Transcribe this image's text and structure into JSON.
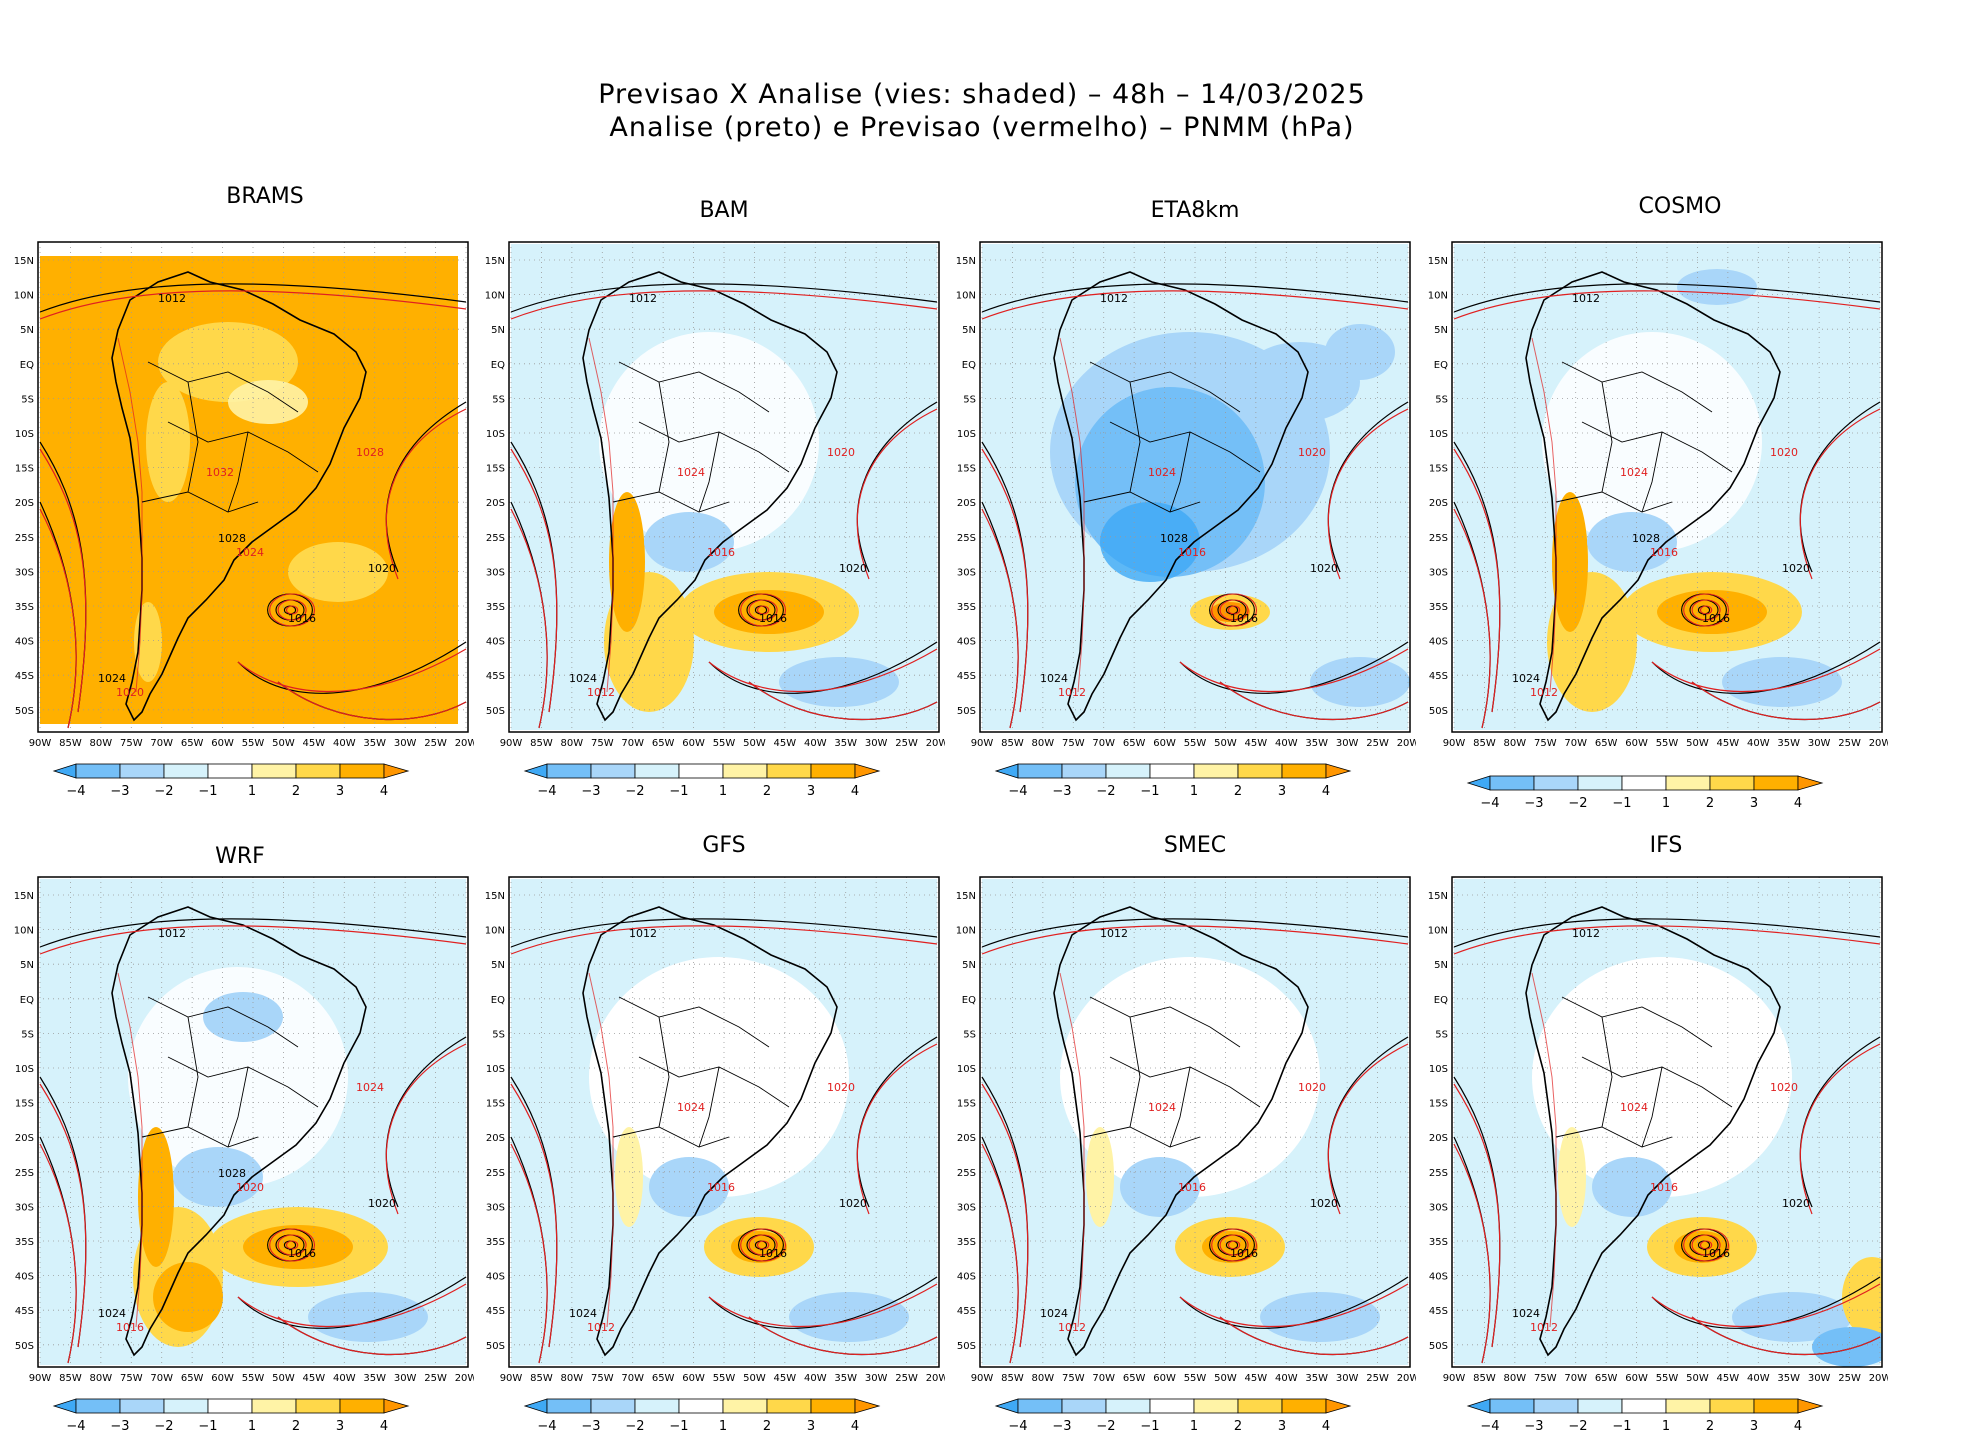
{
  "title": {
    "line1": "Previsao X Analise (vies: shaded) – 48h – 14/03/2025",
    "line2": "Analise (preto) e Previsao (vermelho) – PNMM (hPa)"
  },
  "axes": {
    "lon_labels": [
      "90W",
      "85W",
      "80W",
      "75W",
      "70W",
      "65W",
      "60W",
      "55W",
      "50W",
      "45W",
      "40W",
      "35W",
      "30W",
      "25W",
      "20W"
    ],
    "lat_labels": [
      "15N",
      "10N",
      "5N",
      "EQ",
      "5S",
      "10S",
      "15S",
      "20S",
      "25S",
      "30S",
      "35S",
      "40S",
      "45S",
      "50S"
    ]
  },
  "colorbar": {
    "labels": [
      "-4",
      "-3",
      "-2",
      "-1",
      "1",
      "2",
      "3",
      "4"
    ],
    "colors": [
      "#3fa9f5",
      "#74bff7",
      "#a9d6f9",
      "#d6f2fb",
      "#ffffff",
      "#fff3a6",
      "#ffd84a",
      "#ffb000",
      "#ff9600"
    ]
  },
  "colors": {
    "analysis": "#000000",
    "forecast": "#e02020",
    "grid": "#9a9a9a"
  },
  "panels": [
    {
      "name": "BRAMS",
      "bias": "warm-full",
      "labels_black": [
        "1012",
        "1016",
        "1020",
        "1024",
        "1028"
      ],
      "labels_red": [
        "1020",
        "1024",
        "1028",
        "1032"
      ]
    },
    {
      "name": "BAM",
      "bias": "mixed",
      "labels_black": [
        "1012",
        "1016",
        "1020",
        "1024"
      ],
      "labels_red": [
        "1012",
        "1016",
        "1020",
        "1024"
      ]
    },
    {
      "name": "ETA8km",
      "bias": "cold",
      "labels_black": [
        "1012",
        "1016",
        "1020",
        "1024",
        "1028"
      ],
      "labels_red": [
        "1012",
        "1016",
        "1020",
        "1024"
      ]
    },
    {
      "name": "COSMO",
      "bias": "mixed",
      "labels_black": [
        "1012",
        "1016",
        "1020",
        "1024",
        "1028"
      ],
      "labels_red": [
        "1012",
        "1016",
        "1020",
        "1024"
      ]
    },
    {
      "name": "WRF",
      "bias": "mixed",
      "labels_black": [
        "1012",
        "1016",
        "1020",
        "1024",
        "1028"
      ],
      "labels_red": [
        "1016",
        "1020",
        "1024"
      ]
    },
    {
      "name": "GFS",
      "bias": "light",
      "labels_black": [
        "1012",
        "1016",
        "1020",
        "1024"
      ],
      "labels_red": [
        "1012",
        "1016",
        "1020",
        "1024"
      ]
    },
    {
      "name": "SMEC",
      "bias": "light",
      "labels_black": [
        "1012",
        "1016",
        "1020",
        "1024"
      ],
      "labels_red": [
        "1012",
        "1016",
        "1020",
        "1024"
      ]
    },
    {
      "name": "IFS",
      "bias": "light",
      "labels_black": [
        "1012",
        "1016",
        "1020",
        "1024"
      ],
      "labels_red": [
        "1012",
        "1016",
        "1020",
        "1024"
      ]
    }
  ]
}
